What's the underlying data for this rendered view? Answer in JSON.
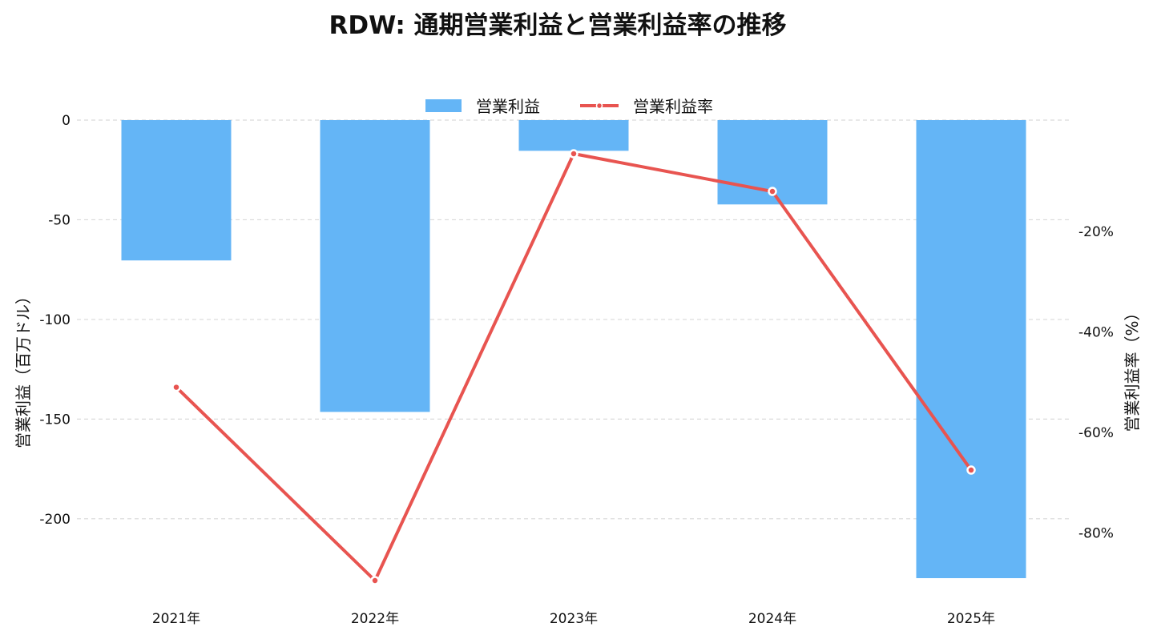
{
  "chart_data": {
    "type": "bar",
    "title": "RDW: 通期営業利益と営業利益率の推移",
    "categories": [
      "2021年",
      "2022年",
      "2023年",
      "2024年",
      "2025年"
    ],
    "series": [
      {
        "name": "営業利益",
        "type": "bar",
        "axis": "left",
        "color": "#64b5f6",
        "values": [
          -70.4,
          -146.4,
          -15.4,
          -42.3,
          -229.8
        ]
      },
      {
        "name": "営業利益率",
        "type": "line",
        "axis": "right",
        "color": "#e85450",
        "values": [
          -51.0,
          -89.5,
          -4.5,
          -12.0,
          -67.5
        ]
      }
    ],
    "ylabel": "営業利益（百万ドル）",
    "ylim": [
      -231,
      0
    ],
    "y_ticks": [
      0,
      -50,
      -100,
      -150,
      -200
    ],
    "y_tick_labels": [
      "0",
      "-50",
      "-100",
      "-150",
      "-200"
    ],
    "y2label": "営業利益率（%）",
    "y2lim": [
      -89.5,
      2.2
    ],
    "y2_ticks": [
      -20,
      -40,
      -60,
      -80
    ],
    "y2_tick_labels": [
      "-20%",
      "-40%",
      "-60%",
      "-80%"
    ],
    "grid": true,
    "legend_position": "top-center"
  }
}
